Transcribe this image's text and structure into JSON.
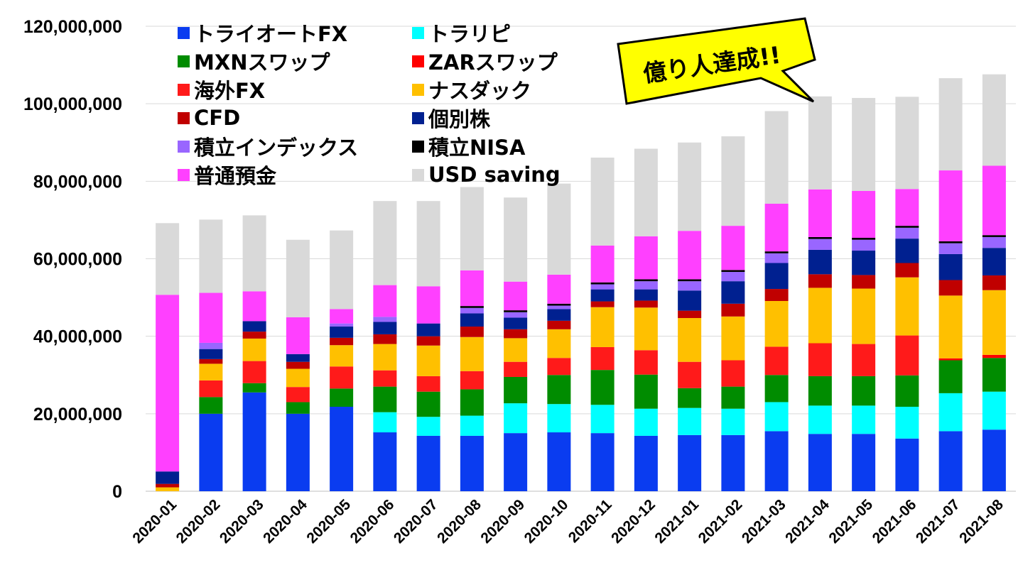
{
  "chart_data": {
    "type": "bar",
    "stacked": true,
    "categories": [
      "2020-01",
      "2020-02",
      "2020-03",
      "2020-04",
      "2020-05",
      "2020-06",
      "2020-07",
      "2020-08",
      "2020-09",
      "2020-10",
      "2020-11",
      "2020-12",
      "2021-01",
      "2021-02",
      "2021-03",
      "2021-04",
      "2021-05",
      "2021-06",
      "2021-07",
      "2021-08"
    ],
    "ylim": [
      0,
      120000000
    ],
    "yticks": [
      0,
      20000000,
      40000000,
      60000000,
      80000000,
      100000000,
      120000000
    ],
    "ytick_labels": [
      "0",
      "20,000,000",
      "40,000,000",
      "60,000,000",
      "80,000,000",
      "100,000,000",
      "120,000,000"
    ],
    "grid": true,
    "legend_position": "top-left",
    "series": [
      {
        "name": "トライオートFX",
        "color": "#0a3cf0",
        "values": [
          0,
          20000000,
          25500000,
          20000000,
          21800000,
          15200000,
          14300000,
          14300000,
          15000000,
          15200000,
          15000000,
          14300000,
          14500000,
          14500000,
          15500000,
          14800000,
          14800000,
          13600000,
          15500000,
          15900000
        ]
      },
      {
        "name": "トラリピ",
        "color": "#00ffff",
        "values": [
          0,
          0,
          0,
          0,
          0,
          5200000,
          4900000,
          5200000,
          7700000,
          7300000,
          7300000,
          7000000,
          7000000,
          6800000,
          7500000,
          7300000,
          7300000,
          8200000,
          9800000,
          9800000
        ]
      },
      {
        "name": "MXNスワップ",
        "color": "#008c00",
        "values": [
          0,
          4300000,
          2400000,
          3000000,
          4700000,
          6600000,
          6500000,
          6800000,
          6800000,
          7500000,
          9000000,
          8800000,
          5100000,
          5700000,
          7000000,
          7600000,
          7600000,
          8100000,
          8500000,
          8700000
        ]
      },
      {
        "name": "ZARスワップ",
        "color": "#ff0000",
        "values": [
          0,
          0,
          0,
          0,
          0,
          0,
          0,
          0,
          0,
          0,
          0,
          0,
          0,
          0,
          0,
          0,
          0,
          0,
          500000,
          800000
        ]
      },
      {
        "name": "海外FX",
        "color": "#ff1a1a",
        "values": [
          0,
          4300000,
          5700000,
          3900000,
          5700000,
          4200000,
          4000000,
          4700000,
          3900000,
          4400000,
          5900000,
          6300000,
          6800000,
          6800000,
          7300000,
          8500000,
          8300000,
          10300000,
          0,
          0
        ]
      },
      {
        "name": "ナスダック",
        "color": "#ffc000",
        "values": [
          1000000,
          4300000,
          5800000,
          4700000,
          5500000,
          6800000,
          7900000,
          8800000,
          6100000,
          7400000,
          10300000,
          11000000,
          11300000,
          11300000,
          11800000,
          14300000,
          14300000,
          15000000,
          16200000,
          16700000
        ]
      },
      {
        "name": "CFD",
        "color": "#c00000",
        "values": [
          900000,
          1200000,
          1800000,
          1800000,
          1900000,
          2500000,
          2400000,
          2700000,
          2300000,
          2200000,
          1500000,
          1800000,
          1900000,
          3300000,
          3100000,
          3500000,
          3500000,
          3700000,
          4000000,
          3800000
        ]
      },
      {
        "name": "個別株",
        "color": "#002090",
        "values": [
          3200000,
          2600000,
          2700000,
          2000000,
          2900000,
          3200000,
          3300000,
          3400000,
          3000000,
          3000000,
          3100000,
          2900000,
          5200000,
          5800000,
          6700000,
          6300000,
          6300000,
          6300000,
          6700000,
          7100000
        ]
      },
      {
        "name": "積立インデックス",
        "color": "#9966ff",
        "values": [
          0,
          1600000,
          0,
          0,
          800000,
          1300000,
          0,
          1400000,
          1400000,
          900000,
          1300000,
          2100000,
          2400000,
          2400000,
          2500000,
          2800000,
          2800000,
          2800000,
          2800000,
          2800000
        ]
      },
      {
        "name": "積立NISA",
        "color": "#000000",
        "values": [
          0,
          0,
          0,
          0,
          0,
          0,
          0,
          500000,
          500000,
          500000,
          500000,
          500000,
          500000,
          500000,
          500000,
          500000,
          500000,
          500000,
          500000,
          500000
        ]
      },
      {
        "name": "普通預金",
        "color": "#ff40ff",
        "values": [
          45600000,
          12900000,
          7700000,
          9500000,
          3700000,
          8200000,
          9600000,
          9200000,
          7400000,
          7500000,
          9500000,
          11100000,
          12500000,
          11400000,
          12300000,
          12300000,
          12100000,
          9500000,
          18300000,
          17900000
        ]
      },
      {
        "name": "USD saving",
        "color": "#d9d9d9",
        "values": [
          18500000,
          18900000,
          19600000,
          20000000,
          20300000,
          21700000,
          22000000,
          21500000,
          21700000,
          23500000,
          22700000,
          22600000,
          22800000,
          23100000,
          23900000,
          24000000,
          24000000,
          23800000,
          23800000,
          23600000
        ]
      }
    ],
    "annotation": "億り人達成!!"
  }
}
